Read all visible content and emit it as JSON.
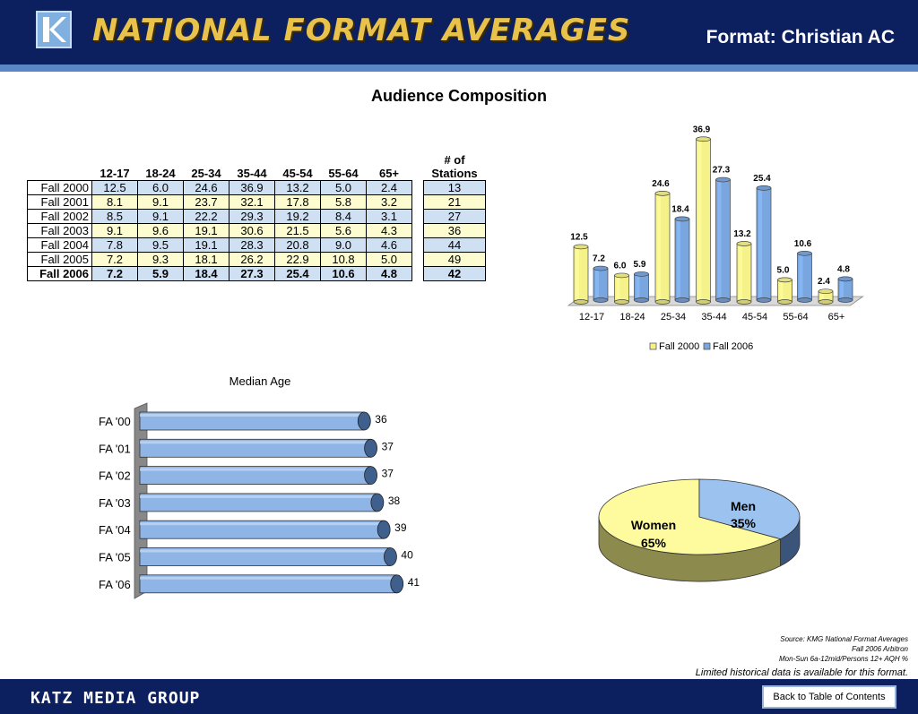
{
  "header": {
    "title": "NATIONAL FORMAT AVERAGES",
    "format": "Format: Christian AC"
  },
  "section_title": "Audience Composition",
  "table": {
    "columns": [
      "12-17",
      "18-24",
      "25-34",
      "35-44",
      "45-54",
      "55-64",
      "65+"
    ],
    "stations_header_line1": "# of",
    "stations_header_line2": "Stations",
    "rows": [
      {
        "label": "Fall 2000",
        "values": [
          "12.5",
          "6.0",
          "24.6",
          "36.9",
          "13.2",
          "5.0",
          "2.4"
        ],
        "stations": "13"
      },
      {
        "label": "Fall 2001",
        "values": [
          "8.1",
          "9.1",
          "23.7",
          "32.1",
          "17.8",
          "5.8",
          "3.2"
        ],
        "stations": "21"
      },
      {
        "label": "Fall 2002",
        "values": [
          "8.5",
          "9.1",
          "22.2",
          "29.3",
          "19.2",
          "8.4",
          "3.1"
        ],
        "stations": "27"
      },
      {
        "label": "Fall 2003",
        "values": [
          "9.1",
          "9.6",
          "19.1",
          "30.6",
          "21.5",
          "5.6",
          "4.3"
        ],
        "stations": "36"
      },
      {
        "label": "Fall 2004",
        "values": [
          "7.8",
          "9.5",
          "19.1",
          "28.3",
          "20.8",
          "9.0",
          "4.6"
        ],
        "stations": "44"
      },
      {
        "label": "Fall 2005",
        "values": [
          "7.2",
          "9.3",
          "18.1",
          "26.2",
          "22.9",
          "10.8",
          "5.0"
        ],
        "stations": "49"
      },
      {
        "label": "Fall 2006",
        "values": [
          "7.2",
          "5.9",
          "18.4",
          "27.3",
          "25.4",
          "10.6",
          "4.8"
        ],
        "stations": "42"
      }
    ]
  },
  "colors": {
    "navy": "#0c2060",
    "fall2000": "#f5f28a",
    "fall2006": "#7aa6e0",
    "women": "#fdfb9e",
    "men": "#9cc3f0",
    "bar": "#8fb5e6"
  },
  "chart_data": [
    {
      "type": "bar",
      "title": "",
      "categories": [
        "12-17",
        "18-24",
        "25-34",
        "35-44",
        "45-54",
        "55-64",
        "65+"
      ],
      "series": [
        {
          "name": "Fall 2000",
          "values": [
            12.5,
            6.0,
            24.6,
            36.9,
            13.2,
            5.0,
            2.4
          ]
        },
        {
          "name": "Fall 2006",
          "values": [
            7.2,
            5.9,
            18.4,
            27.3,
            25.4,
            10.6,
            4.8
          ]
        }
      ],
      "ylim": [
        0,
        40
      ],
      "legend": "bottom",
      "grid": false
    },
    {
      "type": "bar",
      "orientation": "horizontal",
      "title": "Median Age",
      "categories": [
        "FA '00",
        "FA '01",
        "FA '02",
        "FA '03",
        "FA '04",
        "FA '05",
        "FA '06"
      ],
      "values": [
        36,
        37,
        37,
        38,
        39,
        40,
        41
      ],
      "labels": [
        "36",
        "37",
        "37",
        "38",
        "39",
        "40",
        "41"
      ],
      "xlim": [
        0,
        42
      ]
    },
    {
      "type": "pie",
      "labels": [
        "Women",
        "Men"
      ],
      "values": [
        65,
        35
      ],
      "value_labels": [
        "65%",
        "35%"
      ]
    }
  ],
  "source": {
    "line1": "Source:  KMG National Format Averages",
    "line2": "Fall 2006 Arbitron",
    "line3": "Mon-Sun 6a-12mid/Persons 12+ AQH %"
  },
  "limited_note": "Limited historical data is available for this format.",
  "footer": {
    "logo_text": "KATZ MEDIA GROUP",
    "back_button": "Back to Table of Contents"
  }
}
